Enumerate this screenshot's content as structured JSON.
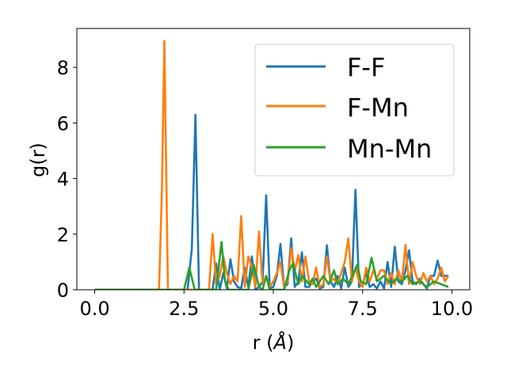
{
  "chart_data": {
    "type": "line",
    "xlabel": "r (",
    "xlabel_unit": "Å",
    "xlabel_close": ")",
    "ylabel": "g(r)",
    "xlim": [
      -0.5,
      10.5
    ],
    "ylim": [
      0,
      9.4
    ],
    "xticks": [
      0.0,
      2.5,
      5.0,
      7.5,
      10.0
    ],
    "xtick_labels": [
      "0.0",
      "2.5",
      "5.0",
      "7.5",
      "10.0"
    ],
    "yticks": [
      0,
      2,
      4,
      6,
      8
    ],
    "ytick_labels": [
      "0",
      "2",
      "4",
      "6",
      "8"
    ],
    "grid": false,
    "legend_position": "top-right",
    "series": [
      {
        "name": "F-F",
        "color": "#1f77b4",
        "x": [
          0,
          2.6,
          2.72,
          2.82,
          2.92,
          3.1,
          3.3,
          3.4,
          3.5,
          3.6,
          3.7,
          3.8,
          3.9,
          4.0,
          4.1,
          4.2,
          4.3,
          4.4,
          4.5,
          4.6,
          4.7,
          4.8,
          4.9,
          5.0,
          5.1,
          5.2,
          5.3,
          5.4,
          5.5,
          5.6,
          5.7,
          5.8,
          5.9,
          6.0,
          6.1,
          6.2,
          6.3,
          6.4,
          6.5,
          6.6,
          6.7,
          6.8,
          6.9,
          7.0,
          7.1,
          7.2,
          7.3,
          7.4,
          7.5,
          7.6,
          7.7,
          7.8,
          7.9,
          8.0,
          8.1,
          8.2,
          8.3,
          8.4,
          8.5,
          8.6,
          8.7,
          8.8,
          8.9,
          9.0,
          9.1,
          9.2,
          9.3,
          9.4,
          9.5,
          9.6,
          9.7,
          9.8,
          9.9
        ],
        "y": [
          0,
          0,
          1.5,
          6.3,
          0,
          0,
          0,
          0.95,
          0,
          0.6,
          0.05,
          1.1,
          0.3,
          0.1,
          0.05,
          0.8,
          0.1,
          1.2,
          0,
          0.1,
          0.3,
          3.4,
          0.05,
          0.1,
          0.5,
          1.65,
          0.1,
          0.2,
          1.85,
          0.1,
          0.3,
          1.35,
          0.1,
          0.1,
          0.3,
          0.4,
          0.05,
          0.1,
          1.6,
          0.3,
          0.1,
          0.5,
          0.05,
          0.8,
          0.1,
          0.3,
          3.6,
          0.1,
          0.2,
          0.6,
          0.1,
          0.2,
          0.05,
          0.3,
          0.05,
          1.0,
          0.1,
          1.55,
          0.3,
          0.2,
          0.7,
          1.42,
          0.3,
          0.2,
          0.4,
          0.2,
          0.05,
          0.5,
          0.5,
          1.05,
          0.5,
          0.5,
          0.5
        ]
      },
      {
        "name": "F-Mn",
        "color": "#ff7f0e",
        "x": [
          0,
          1.8,
          1.88,
          1.95,
          2.05,
          2.2,
          3.2,
          3.3,
          3.4,
          3.5,
          3.6,
          3.7,
          3.8,
          3.9,
          4.0,
          4.1,
          4.2,
          4.3,
          4.4,
          4.5,
          4.6,
          4.7,
          4.8,
          4.9,
          5.0,
          5.1,
          5.2,
          5.3,
          5.4,
          5.5,
          5.6,
          5.7,
          5.8,
          5.9,
          6.0,
          6.1,
          6.2,
          6.3,
          6.4,
          6.5,
          6.6,
          6.7,
          6.8,
          6.9,
          7.0,
          7.1,
          7.2,
          7.3,
          7.4,
          7.5,
          7.6,
          7.7,
          7.8,
          7.9,
          8.0,
          8.1,
          8.2,
          8.3,
          8.4,
          8.5,
          8.6,
          8.7,
          8.8,
          8.9,
          9.0,
          9.1,
          9.2,
          9.3,
          9.4,
          9.5,
          9.6,
          9.7,
          9.8,
          9.9
        ],
        "y": [
          0,
          0,
          3.5,
          8.95,
          0,
          0,
          0,
          2.0,
          0.2,
          0.5,
          1.2,
          0.6,
          0.2,
          0.5,
          0.3,
          2.65,
          0.1,
          1.2,
          0.8,
          0.1,
          2.1,
          0.2,
          0.5,
          0.1,
          0.3,
          0.6,
          1.0,
          0.1,
          0.3,
          1.5,
          0.7,
          1.25,
          0.3,
          1.2,
          0.3,
          0.2,
          0.8,
          0.1,
          0.2,
          1.2,
          0.3,
          0.4,
          0.2,
          0.6,
          1.0,
          1.85,
          0.3,
          0.8,
          0.3,
          0.1,
          0.8,
          0.3,
          0.7,
          0.4,
          0.7,
          0.7,
          0.2,
          0.6,
          0.2,
          0.7,
          0.3,
          1.62,
          0.2,
          1.0,
          0.5,
          0.2,
          0.6,
          0.3,
          0.5,
          0.2,
          0.4,
          0.8,
          0.3,
          0.5
        ]
      },
      {
        "name": "Mn-Mn",
        "color": "#2ca02c",
        "x": [
          0,
          2.5,
          2.65,
          2.8,
          2.95,
          3.4,
          3.55,
          3.65,
          3.75,
          3.9,
          4.3,
          4.45,
          4.6,
          4.7,
          4.8,
          4.9,
          5.3,
          5.45,
          5.55,
          5.7,
          5.8,
          6.0,
          6.1,
          6.2,
          6.4,
          6.55,
          6.7,
          6.8,
          6.95,
          7.1,
          7.25,
          7.35,
          7.45,
          7.6,
          7.75,
          7.9,
          8.1,
          8.3,
          8.45,
          8.6,
          8.75,
          8.9,
          9.1,
          9.3,
          9.5,
          9.7,
          9.9
        ],
        "y": [
          0,
          0,
          0.8,
          0,
          0,
          0,
          1.72,
          0.3,
          0,
          0,
          0,
          0.9,
          0.1,
          0,
          0.5,
          0,
          0,
          0.7,
          0.95,
          0.2,
          0.5,
          0.2,
          0.4,
          0.1,
          0.5,
          0.2,
          0.7,
          0.2,
          0.4,
          0.2,
          0.6,
          0.9,
          0.3,
          0.2,
          1.15,
          0.3,
          0.5,
          0.2,
          0.4,
          0.3,
          0.5,
          0.2,
          0.3,
          0.1,
          0.3,
          0.2,
          0.1
        ]
      }
    ]
  }
}
